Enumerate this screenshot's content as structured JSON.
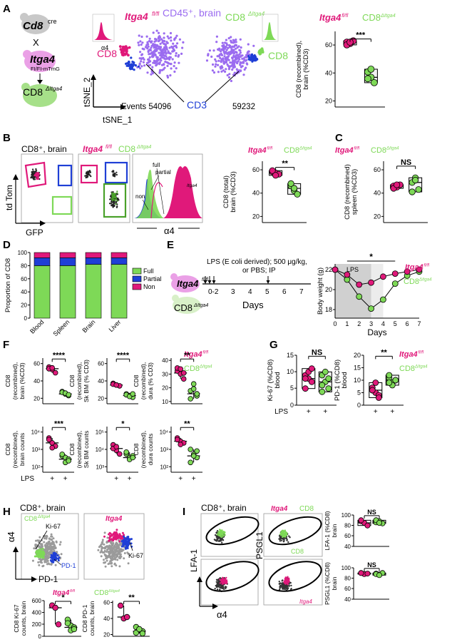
{
  "colors": {
    "magenta": "#e0197a",
    "green": "#7ed957",
    "blue": "#1f3fd6",
    "purple": "#9b6cf0",
    "lightgreen": "#a6e089",
    "gray": "#9a9a9a"
  },
  "panel_labels": {
    "A": "A",
    "B": "B",
    "C": "C",
    "D": "D",
    "E": "E",
    "F": "F",
    "G": "G",
    "H": "H",
    "I": "I"
  },
  "legend": {
    "fl": "Itga4",
    "fl_sup": "fl/fl",
    "cd8": "CD8",
    "cd8_sup": "ΔItga4",
    "cd8_sup_cre": "cre",
    "itga4_mt": "FI/FI-mTmG"
  },
  "panelA": {
    "cd8cre": "Cd8",
    "itga4": "Itga4",
    "x": "X",
    "title": "CD45⁺, brain",
    "alpha4": "α4",
    "tsne2": "tSNE_2",
    "tsne1": "tSNE_1",
    "cd8": "CD8",
    "cd3": "CD3",
    "events_left": "Events 54096",
    "events_right": "59232",
    "ylabel": "CD8 (recombined), brain (%CD3)",
    "ylabel1": "CD8 (recombined),",
    "ylabel2": "brain (%CD3)",
    "ticks": [
      "60",
      "40",
      "20"
    ],
    "sig": "***"
  },
  "panelB": {
    "title": "CD8⁺, brain",
    "tdtom": "td Tom",
    "gfp": "GFP",
    "alpha4": "α4",
    "full": "full",
    "partial": "partial",
    "non": "non",
    "ylabel1": "CD8 (total)",
    "ylabel2": "brain (%CD3)",
    "ticks": [
      "60",
      "40",
      "20"
    ],
    "sig": "**"
  },
  "panelC": {
    "ylabel1": "CD8 (recombined)",
    "ylabel2": "spleen (%CD3)",
    "ticks": [
      "60",
      "40",
      "20"
    ],
    "sig": "NS"
  },
  "panelD": {
    "ylabel": "Proportion of CD8",
    "ticks": [
      "100",
      "80",
      "60",
      "40",
      "20",
      "0"
    ],
    "categories": [
      "Blood",
      "Spleen",
      "Brain",
      "Liver"
    ],
    "legend": [
      "Full",
      "Partial",
      "Non"
    ]
  },
  "panelE": {
    "treatment": "LPS (E coli derived); 500 μg/kg,",
    "treatment2": "or PBS; IP",
    "days": "Days",
    "timeline_ticks": [
      "0-2",
      "3",
      "4",
      "5",
      "6",
      "7"
    ],
    "ylabel": "Body weight (g)",
    "lps": "LPS",
    "sig": "*",
    "yticks": [
      "22",
      "20",
      "18"
    ],
    "xticks": [
      "0",
      "1",
      "2",
      "3",
      "4",
      "5",
      "6",
      "7"
    ]
  },
  "panelF": {
    "plots": [
      {
        "ylabel1": "CD8",
        "ylabel2": "(recombined),",
        "ylabel3": "brain (%CD3)",
        "sig": "****",
        "ticks": [
          "60",
          "40",
          "20"
        ]
      },
      {
        "ylabel1": "CD8",
        "ylabel2": "(recombined),",
        "ylabel3": "Sk BM (% CD3)",
        "sig": "****",
        "ticks": [
          "60",
          "40",
          "20"
        ]
      },
      {
        "ylabel1": "CD8",
        "ylabel2": "(recombined),",
        "ylabel3": "dura (% CD3)",
        "sig": "**",
        "ticks": [
          "40",
          "30",
          "20",
          "10"
        ]
      },
      {
        "ylabel1": "CD8",
        "ylabel2": "(recombined),",
        "ylabel3": "brain counts",
        "sig": "***",
        "ticks": [
          "10⁴",
          "10³",
          "10²"
        ]
      },
      {
        "ylabel1": "CD8",
        "ylabel2": "(recombined),",
        "ylabel3": "Sk BM counts",
        "sig": "*",
        "ticks": [
          "10⁵",
          "10⁴",
          "10³"
        ]
      },
      {
        "ylabel1": "CD8",
        "ylabel2": "(recombined),",
        "ylabel3": "dura counts",
        "sig": "**",
        "ticks": [
          "10⁴",
          "10³",
          "10²"
        ]
      }
    ],
    "lps": "LPS",
    "plus": "+"
  },
  "panelG": {
    "plots": [
      {
        "ylabel1": "Ki-67 (%CD8)",
        "ylabel2": "blood",
        "sig": "NS",
        "ticks": [
          "15",
          "10",
          "5",
          "0"
        ]
      },
      {
        "ylabel1": "PD-1 (%CD8)",
        "ylabel2": "blood",
        "sig": "**",
        "ticks": [
          "20",
          "15",
          "10",
          "5",
          "0"
        ]
      }
    ],
    "lps": "LPS",
    "plus": "+"
  },
  "panelH": {
    "title": "CD8⁺, brain",
    "alpha4": "α4",
    "pd1": "PD-1",
    "ki67": "Ki-67",
    "pd1_lbl": "PD-1",
    "plots": [
      {
        "ylabel1": "CD8 Ki-67",
        "ylabel2": "counts, brain",
        "sig": "*",
        "ticks": [
          "600",
          "400",
          "200",
          "0"
        ]
      },
      {
        "ylabel1": "CD8 PD-1",
        "ylabel2": "counts, brain",
        "sig": "**",
        "ticks": [
          "60",
          "40",
          "20"
        ]
      }
    ]
  },
  "panelI": {
    "title": "CD8⁺, brain",
    "lfa1": "LFA-1",
    "psgl1": "PSGL1",
    "alpha4": "α4",
    "plots": [
      {
        "ylabel1": "LFA-1 (%CD8)",
        "ylabel2": "brain",
        "sig": "NS",
        "ticks": [
          "100",
          "80",
          "60",
          "40"
        ]
      },
      {
        "ylabel1": "PSGL1 (%CD8)",
        "ylabel2": "brain",
        "sig": "NS",
        "ticks": [
          "100",
          "80",
          "60",
          "40"
        ]
      }
    ]
  }
}
